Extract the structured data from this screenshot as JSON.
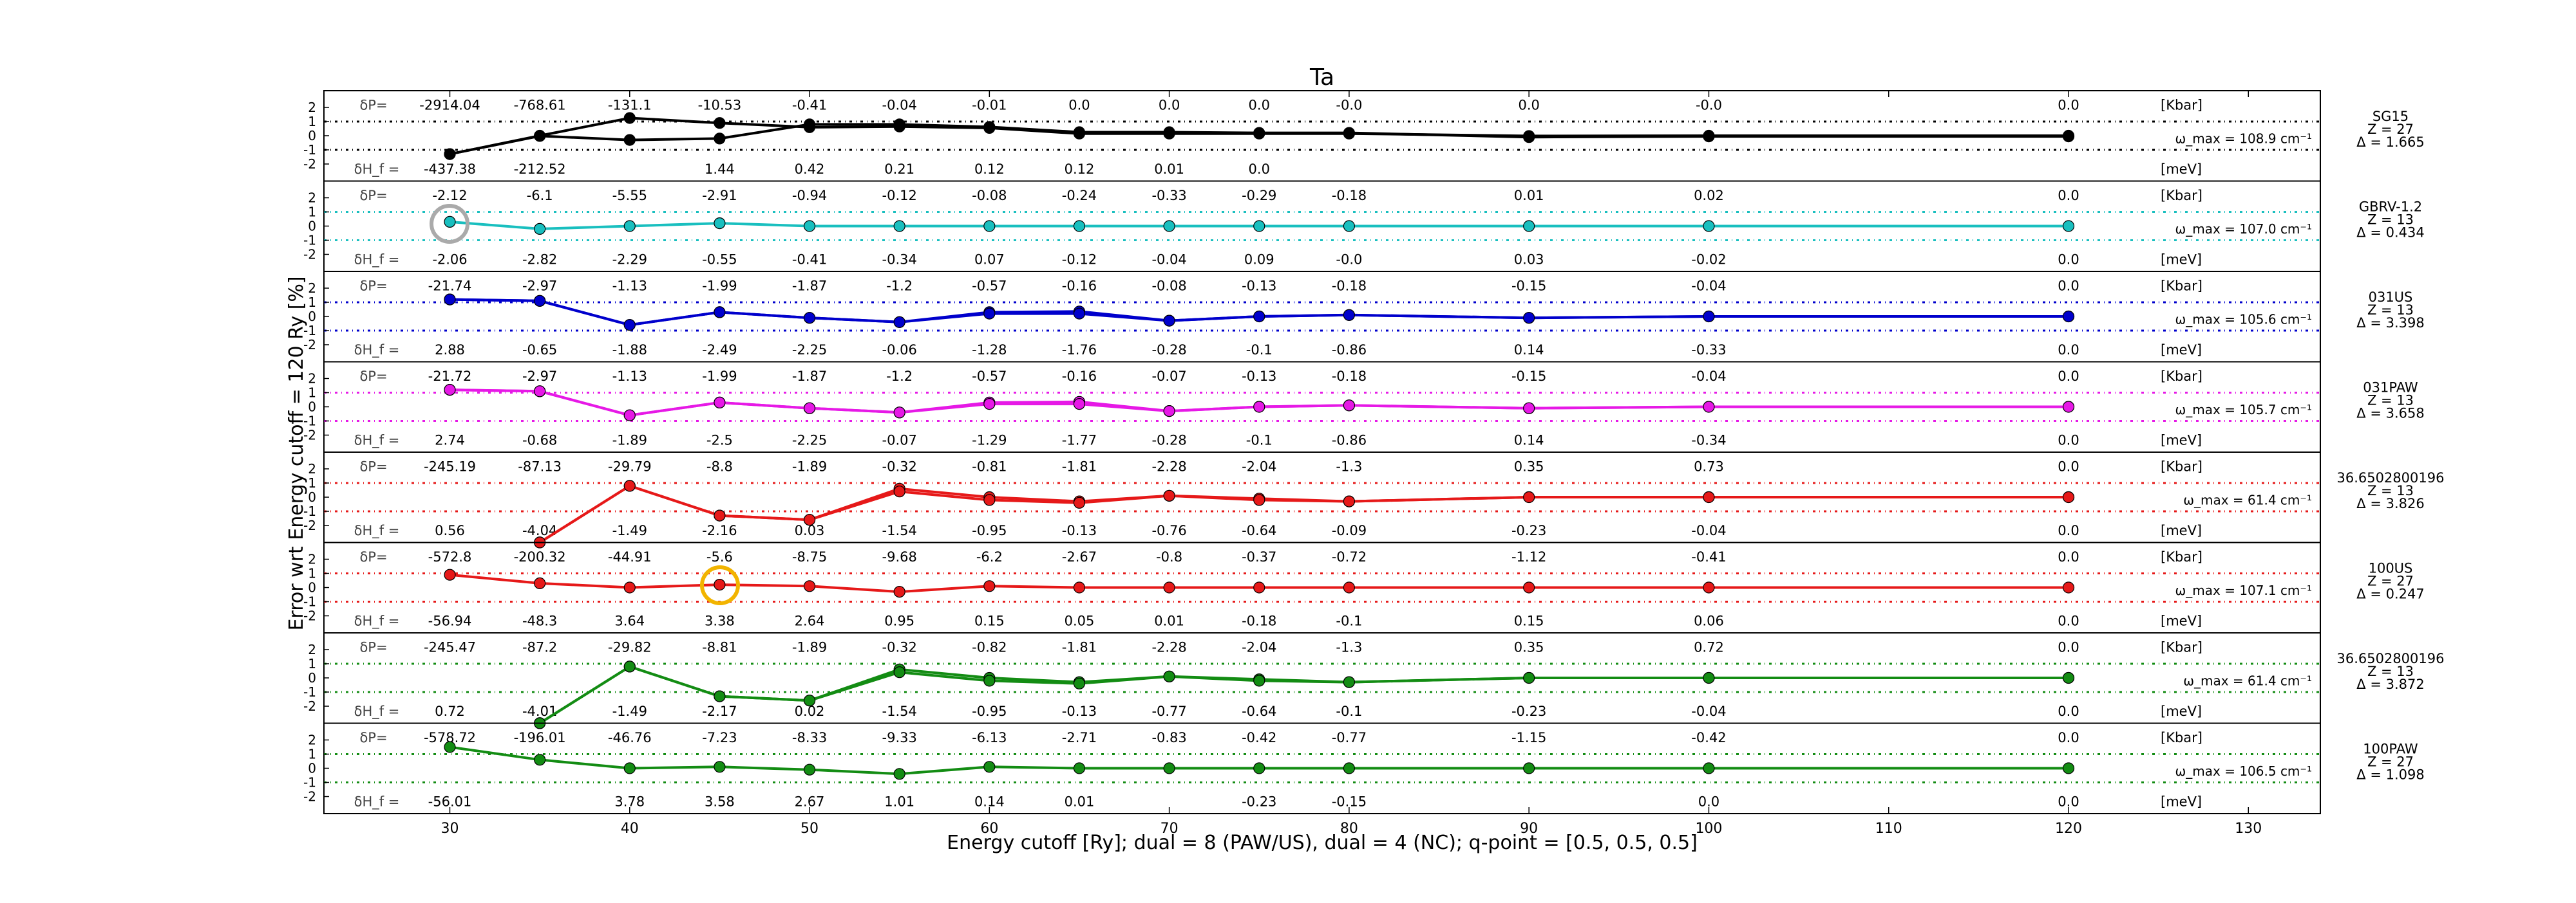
{
  "chart_data": {
    "type": "line",
    "title": "Ta",
    "xlabel": "Energy cutoff [Ry]; dual = 8 (PAW/US), dual = 4 (NC); q-point = [0.5, 0.5, 0.5]",
    "ylabel": "Error wrt Energy cutoff = 120 Ry [%]",
    "xlim": [
      23,
      134
    ],
    "xticks": [
      30,
      40,
      50,
      60,
      70,
      80,
      90,
      100,
      110,
      120,
      130
    ],
    "yticks": [
      "2",
      "1",
      "0",
      "-1",
      "-2"
    ],
    "x": [
      30,
      35,
      40,
      45,
      50,
      55,
      60,
      65,
      70,
      75,
      80,
      90,
      100,
      120
    ],
    "dp_label": "δP=",
    "dh_label": "δH_f =",
    "dp_unit": "[Kbar]",
    "dh_unit": "[meV]",
    "omega_prefix": "ω_max =",
    "omega_unit": "cm⁻¹",
    "grid": false,
    "series": [
      {
        "name": "SG15",
        "z": "Z = 27",
        "delta": "Δ = 1.665",
        "color": "#000000",
        "omega": "108.9",
        "values": [
          -1.3,
          -0.02,
          -0.3,
          -0.2,
          0.8,
          0.8,
          0.62,
          0.25,
          0.25,
          0.2,
          0.2,
          -0.1,
          -0.05,
          -0.05
        ],
        "values2": [
          -1.3,
          0.0,
          1.25,
          0.9,
          0.6,
          0.65,
          0.55,
          0.15,
          0.15,
          0.15,
          0.15,
          -0.02,
          0.0,
          0.0
        ],
        "dp": [
          "-2914.04",
          "-768.61",
          "-131.1",
          "-10.53",
          "-0.41",
          "-0.04",
          "-0.01",
          "0.0",
          "0.0",
          "0.0",
          "-0.0",
          "0.0",
          "-0.0",
          "0.0"
        ],
        "dh": [
          "-437.38",
          "-212.52",
          "",
          "1.44",
          "0.42",
          "0.21",
          "0.12",
          "0.12",
          "0.01",
          "0.0",
          "",
          "",
          "",
          ""
        ]
      },
      {
        "name": "GBRV-1.2",
        "z": "Z = 13",
        "delta": "Δ = 0.434",
        "color": "#19bfbf",
        "omega": "107.0",
        "values": [
          0.3,
          -0.2,
          0.0,
          0.2,
          0.0,
          0.0,
          0.0,
          0.0,
          0.0,
          0.0,
          0.0,
          0.0,
          0.0,
          0.0
        ],
        "dp": [
          "-2.12",
          "-6.1",
          "-5.55",
          "-2.91",
          "-0.94",
          "-0.12",
          "-0.08",
          "-0.24",
          "-0.33",
          "-0.29",
          "-0.18",
          "0.01",
          "0.02",
          "0.0"
        ],
        "dh": [
          "-2.06",
          "-2.82",
          "-2.29",
          "-0.55",
          "-0.41",
          "-0.34",
          "0.07",
          "-0.12",
          "-0.04",
          "0.09",
          "-0.0",
          "0.03",
          "-0.02",
          "0.0"
        ]
      },
      {
        "name": "031US",
        "z": "Z = 13",
        "delta": "Δ = 3.398",
        "color": "#0000cc",
        "omega": "105.6",
        "values": [
          1.2,
          1.1,
          -0.6,
          0.3,
          -0.1,
          -0.4,
          0.2,
          0.2,
          -0.3,
          0.0,
          0.1,
          -0.1,
          0.0,
          0.0
        ],
        "values2": [
          1.2,
          1.1,
          -0.6,
          0.3,
          -0.1,
          -0.4,
          0.3,
          0.35,
          -0.3,
          0.0,
          0.1,
          -0.1,
          0.0,
          0.0
        ],
        "dp": [
          "-21.74",
          "-2.97",
          "-1.13",
          "-1.99",
          "-1.87",
          "-1.2",
          "-0.57",
          "-0.16",
          "-0.08",
          "-0.13",
          "-0.18",
          "-0.15",
          "-0.04",
          "0.0"
        ],
        "dh": [
          "2.88",
          "-0.65",
          "-1.88",
          "-2.49",
          "-2.25",
          "-0.06",
          "-1.28",
          "-1.76",
          "-0.28",
          "-0.1",
          "-0.86",
          "0.14",
          "-0.33",
          "0.0"
        ]
      },
      {
        "name": "031PAW",
        "z": "Z = 13",
        "delta": "Δ = 3.658",
        "color": "#e619e6",
        "omega": "105.7",
        "values": [
          1.2,
          1.1,
          -0.6,
          0.3,
          -0.1,
          -0.4,
          0.2,
          0.2,
          -0.3,
          0.0,
          0.1,
          -0.1,
          0.0,
          0.0
        ],
        "values2": [
          1.2,
          1.1,
          -0.6,
          0.3,
          -0.1,
          -0.4,
          0.3,
          0.35,
          -0.3,
          0.0,
          0.1,
          -0.1,
          0.0,
          0.0
        ],
        "dp": [
          "-21.72",
          "-2.97",
          "-1.13",
          "-1.99",
          "-1.87",
          "-1.2",
          "-0.57",
          "-0.16",
          "-0.07",
          "-0.13",
          "-0.18",
          "-0.15",
          "-0.04",
          "0.0"
        ],
        "dh": [
          "2.74",
          "-0.68",
          "-1.89",
          "-2.5",
          "-2.25",
          "-0.07",
          "-1.29",
          "-1.77",
          "-0.28",
          "-0.1",
          "-0.86",
          "0.14",
          "-0.34",
          "0.0"
        ]
      },
      {
        "name": "36.6502800196",
        "z": "Z = 13",
        "delta": "Δ = 3.826",
        "color": "#e61919",
        "omega": "61.4",
        "values": [
          null,
          -3.2,
          0.8,
          -1.3,
          -1.6,
          0.4,
          -0.2,
          -0.4,
          0.1,
          -0.2,
          -0.3,
          0.0,
          0.0,
          0.0
        ],
        "values2": [
          null,
          -3.2,
          0.8,
          -1.3,
          -1.6,
          0.6,
          0.0,
          -0.3,
          0.1,
          -0.1,
          -0.3,
          0.0,
          0.0,
          0.0
        ],
        "dp": [
          "-245.19",
          "-87.13",
          "-29.79",
          "-8.8",
          "-1.89",
          "-0.32",
          "-0.81",
          "-1.81",
          "-2.28",
          "-2.04",
          "-1.3",
          "0.35",
          "0.73",
          "0.0"
        ],
        "dh": [
          "0.56",
          "-4.04",
          "-1.49",
          "-2.16",
          "0.03",
          "-1.54",
          "-0.95",
          "-0.13",
          "-0.76",
          "-0.64",
          "-0.09",
          "-0.23",
          "-0.04",
          "0.0"
        ]
      },
      {
        "name": "100US",
        "z": "Z = 27",
        "delta": "Δ = 0.247",
        "color": "#e61919",
        "omega": "107.1",
        "values": [
          0.9,
          0.3,
          0.0,
          0.2,
          0.1,
          -0.3,
          0.1,
          0.0,
          0.0,
          0.0,
          0.0,
          0.0,
          0.0,
          0.0
        ],
        "dp": [
          "-572.8",
          "-200.32",
          "-44.91",
          "-5.6",
          "-8.75",
          "-9.68",
          "-6.2",
          "-2.67",
          "-0.8",
          "-0.37",
          "-0.72",
          "-1.12",
          "-0.41",
          "0.0"
        ],
        "dh": [
          "-56.94",
          "-48.3",
          "3.64",
          "3.38",
          "2.64",
          "0.95",
          "0.15",
          "0.05",
          "0.01",
          "-0.18",
          "-0.1",
          "0.15",
          "0.06",
          "0.0"
        ]
      },
      {
        "name": "36.6502800196",
        "z": "Z = 13",
        "delta": "Δ = 3.872",
        "color": "#138c13",
        "omega": "61.4",
        "values": [
          null,
          -3.2,
          0.8,
          -1.3,
          -1.6,
          0.4,
          -0.2,
          -0.4,
          0.1,
          -0.2,
          -0.3,
          0.0,
          0.0,
          0.0
        ],
        "values2": [
          null,
          -3.2,
          0.8,
          -1.3,
          -1.6,
          0.6,
          0.0,
          -0.3,
          0.1,
          -0.1,
          -0.3,
          0.0,
          0.0,
          0.0
        ],
        "dp": [
          "-245.47",
          "-87.2",
          "-29.82",
          "-8.81",
          "-1.89",
          "-0.32",
          "-0.82",
          "-1.81",
          "-2.28",
          "-2.04",
          "-1.3",
          "0.35",
          "0.72",
          "0.0"
        ],
        "dh": [
          "0.72",
          "-4.01",
          "-1.49",
          "-2.17",
          "0.02",
          "-1.54",
          "-0.95",
          "-0.13",
          "-0.77",
          "-0.64",
          "-0.1",
          "-0.23",
          "-0.04",
          "0.0"
        ]
      },
      {
        "name": "100PAW",
        "z": "Z = 27",
        "delta": "Δ = 1.098",
        "color": "#138c13",
        "omega": "106.5",
        "values": [
          1.5,
          0.6,
          0.0,
          0.1,
          -0.1,
          -0.4,
          0.1,
          0.0,
          0.0,
          0.0,
          0.0,
          0.0,
          0.0,
          0.0
        ],
        "dp": [
          "-578.72",
          "-196.01",
          "-46.76",
          "-7.23",
          "-8.33",
          "-9.33",
          "-6.13",
          "-2.71",
          "-0.83",
          "-0.42",
          "-0.77",
          "-1.15",
          "-0.42",
          "0.0"
        ],
        "dh": [
          "-56.01",
          "",
          "3.78",
          "3.58",
          "2.67",
          "1.01",
          "0.14",
          "0.01",
          "",
          "-0.23",
          "-0.15",
          "",
          "0.0",
          "0.0"
        ]
      }
    ]
  }
}
